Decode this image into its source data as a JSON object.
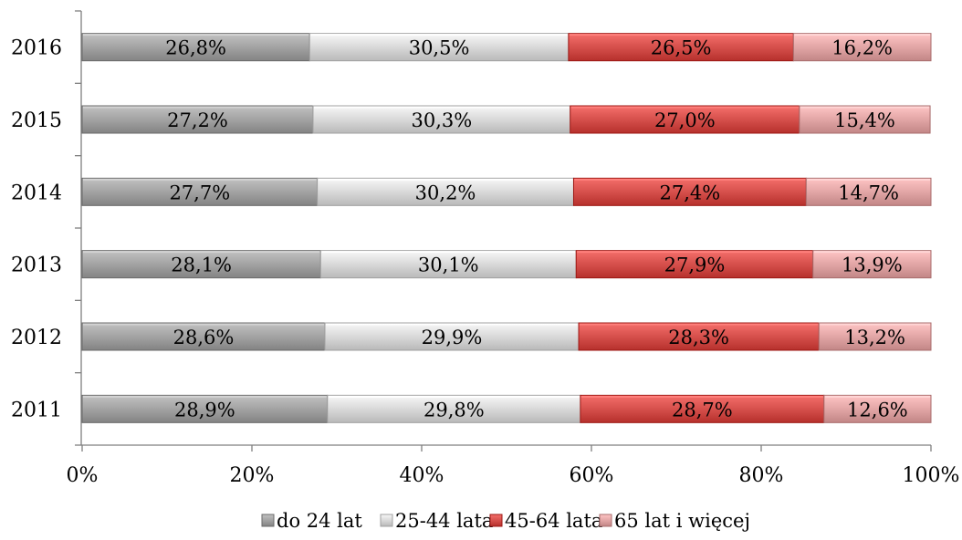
{
  "chart_data": {
    "type": "bar",
    "orientation": "horizontal",
    "stacked": true,
    "percent": true,
    "categories": [
      "2016",
      "2015",
      "2014",
      "2013",
      "2012",
      "2011"
    ],
    "series": [
      {
        "name": "do 24 lat",
        "values": [
          26.8,
          27.2,
          27.7,
          28.1,
          28.6,
          28.9
        ],
        "labels": [
          "26,8%",
          "27,2%",
          "27,7%",
          "28,1%",
          "28,6%",
          "28,9%"
        ],
        "color": "#a6a6a6"
      },
      {
        "name": "25-44 lata",
        "values": [
          30.5,
          30.3,
          30.2,
          30.1,
          29.9,
          29.8
        ],
        "labels": [
          "30,5%",
          "30,3%",
          "30,2%",
          "30,1%",
          "29,9%",
          "29,8%"
        ],
        "color": "#dcdcdc"
      },
      {
        "name": "45-64 lata",
        "values": [
          26.5,
          27.0,
          27.4,
          27.9,
          28.3,
          28.7
        ],
        "labels": [
          "26,5%",
          "27,0%",
          "27,4%",
          "27,9%",
          "28,3%",
          "28,7%"
        ],
        "color": "#d9534f"
      },
      {
        "name": "65 lat i więcej",
        "values": [
          16.2,
          15.4,
          14.7,
          13.9,
          13.2,
          12.6
        ],
        "labels": [
          "16,2%",
          "15,4%",
          "14,7%",
          "13,9%",
          "13,2%",
          "12,6%"
        ],
        "color": "#e5a9a9"
      }
    ],
    "x_ticks": [
      "0%",
      "20%",
      "40%",
      "60%",
      "80%",
      "100%"
    ],
    "xlim": [
      0,
      100
    ],
    "grid": false,
    "legend": "bottom",
    "title": "",
    "xlabel": "",
    "ylabel": ""
  }
}
